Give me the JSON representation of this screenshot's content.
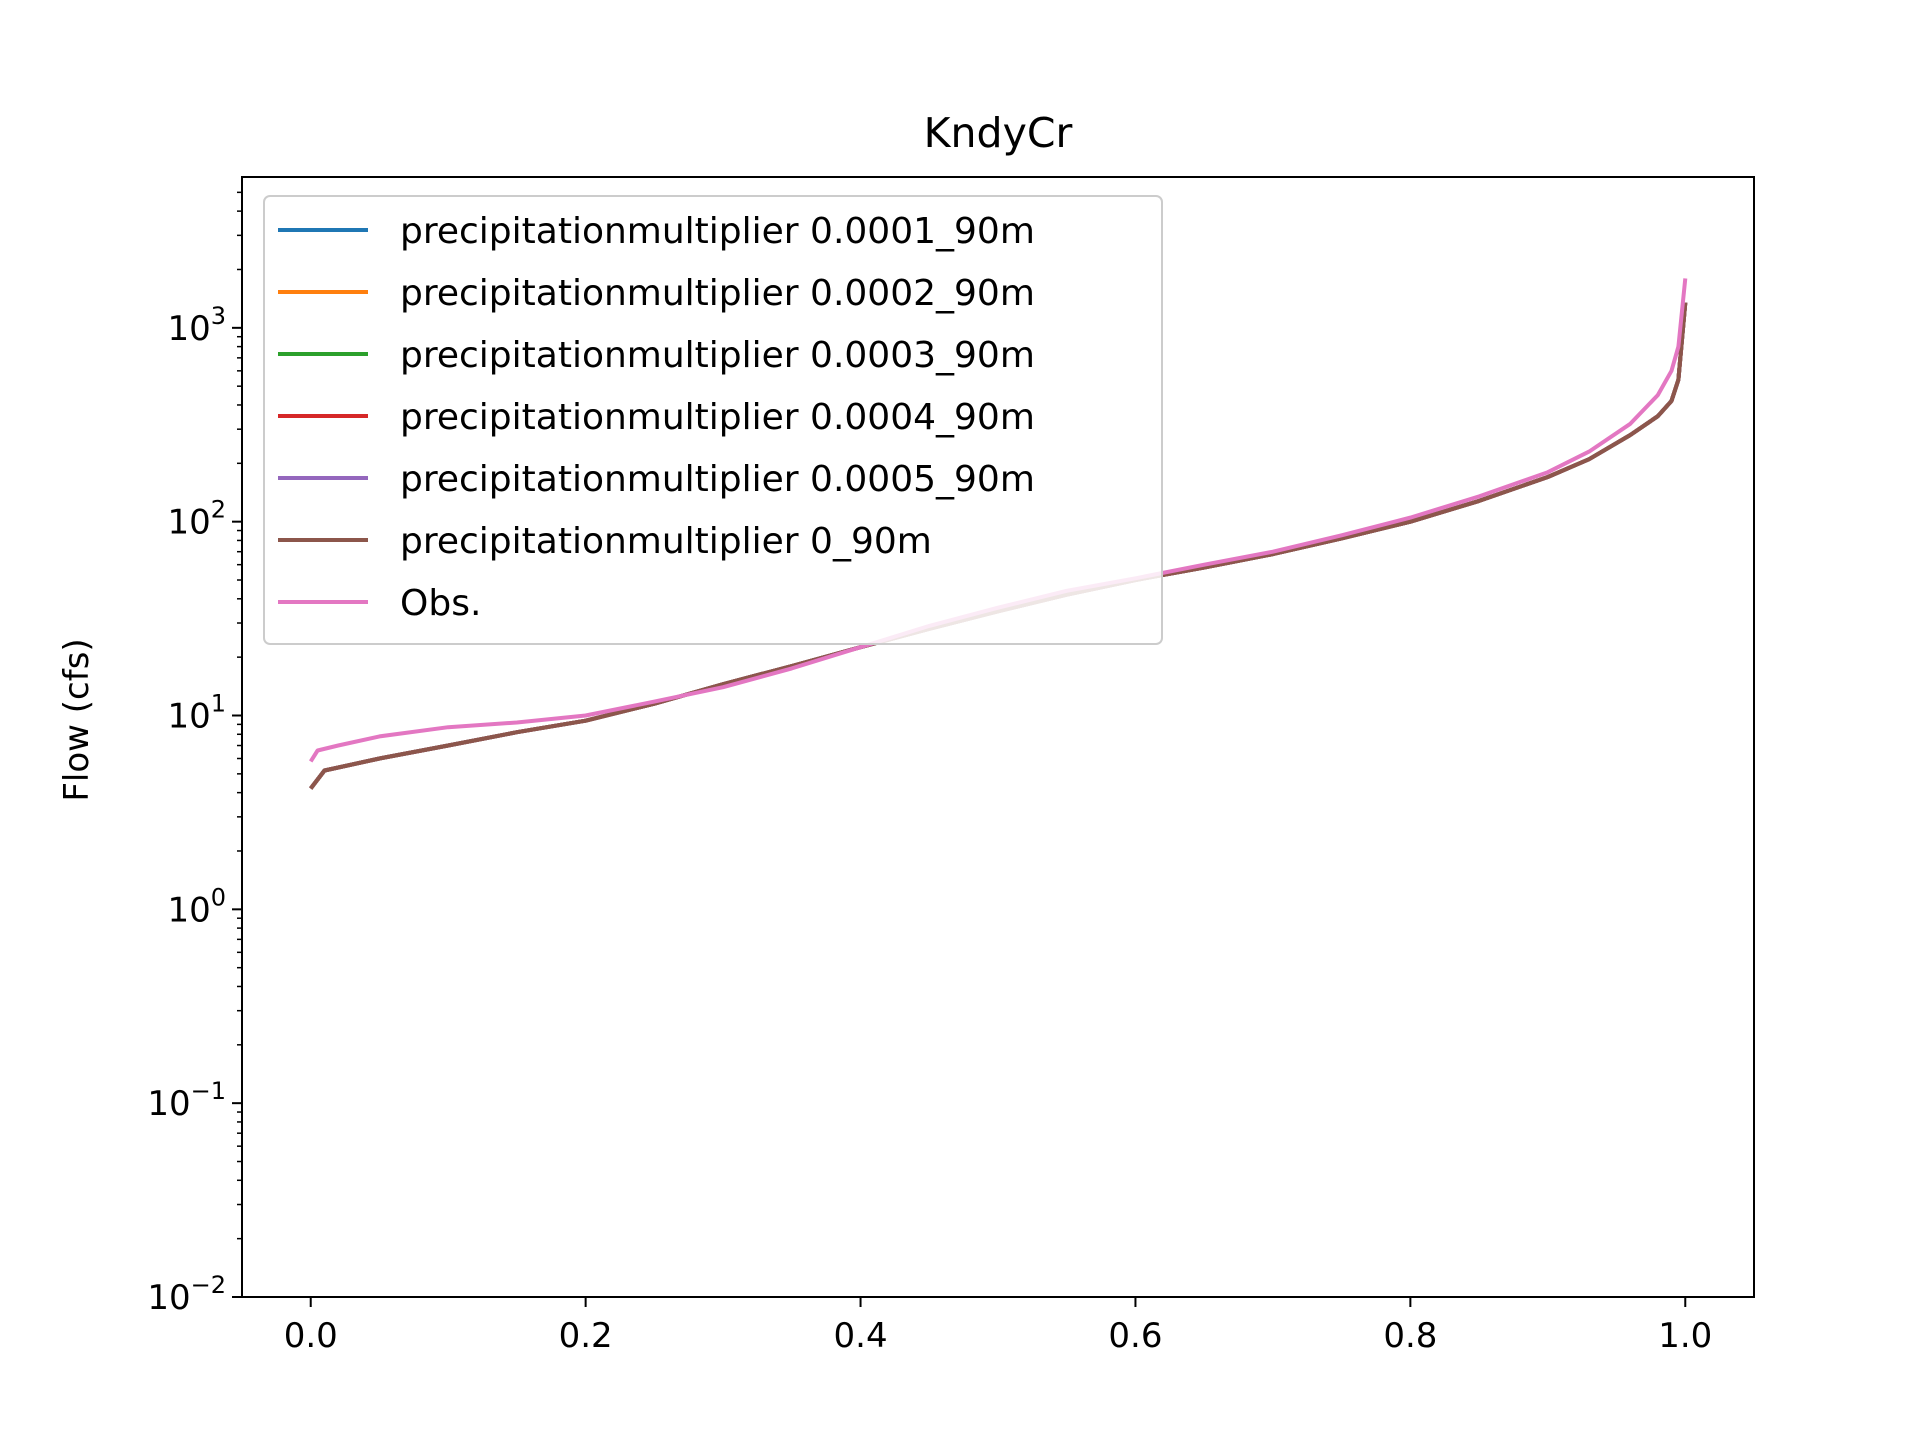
{
  "chart_data": {
    "type": "line",
    "title": "KndyCr",
    "xlabel": "",
    "ylabel": "Flow (cfs)",
    "xlim": [
      -0.05,
      1.05
    ],
    "ylim": [
      0.01,
      6000
    ],
    "yscale": "log",
    "xticks": [
      0.0,
      0.2,
      0.4,
      0.6,
      0.8,
      1.0
    ],
    "xtick_labels": [
      "0.0",
      "0.2",
      "0.4",
      "0.6",
      "0.8",
      "1.0"
    ],
    "yticks": [
      {
        "value": 0.01,
        "base": "10",
        "exp": "−2"
      },
      {
        "value": 0.1,
        "base": "10",
        "exp": "−1"
      },
      {
        "value": 1,
        "base": "10",
        "exp": "0"
      },
      {
        "value": 10,
        "base": "10",
        "exp": "1"
      },
      {
        "value": 100,
        "base": "10",
        "exp": "2"
      },
      {
        "value": 1000,
        "base": "10",
        "exp": "3"
      }
    ],
    "grid": false,
    "legend_position": "upper-left",
    "series": [
      {
        "name": "precipitationmultiplier 0.0001_90m",
        "color": "#1f77b4",
        "x": [
          0.0,
          0.01,
          0.05,
          0.1,
          0.15,
          0.2,
          0.25,
          0.3,
          0.35,
          0.4,
          0.45,
          0.5,
          0.55,
          0.6,
          0.65,
          0.7,
          0.75,
          0.8,
          0.85,
          0.9,
          0.93,
          0.96,
          0.98,
          0.99,
          0.995,
          1.0
        ],
        "y": [
          4.2,
          5.2,
          6.0,
          7.0,
          8.2,
          9.4,
          11.5,
          14.5,
          18.0,
          22.5,
          28.0,
          34.5,
          42.0,
          50.0,
          58.0,
          68.0,
          82.0,
          100.0,
          128.0,
          170.0,
          210.0,
          280.0,
          350.0,
          420.0,
          540.0,
          1350.0
        ]
      },
      {
        "name": "precipitationmultiplier 0.0002_90m",
        "color": "#ff7f0e",
        "x": [
          0.0,
          0.01,
          0.05,
          0.1,
          0.15,
          0.2,
          0.25,
          0.3,
          0.35,
          0.4,
          0.45,
          0.5,
          0.55,
          0.6,
          0.65,
          0.7,
          0.75,
          0.8,
          0.85,
          0.9,
          0.93,
          0.96,
          0.98,
          0.99,
          0.995,
          1.0
        ],
        "y": [
          4.2,
          5.2,
          6.0,
          7.0,
          8.2,
          9.4,
          11.5,
          14.5,
          18.0,
          22.5,
          28.0,
          34.5,
          42.0,
          50.0,
          58.0,
          68.0,
          82.0,
          100.0,
          128.0,
          170.0,
          210.0,
          280.0,
          350.0,
          420.0,
          540.0,
          1350.0
        ]
      },
      {
        "name": "precipitationmultiplier 0.0003_90m",
        "color": "#2ca02c",
        "x": [
          0.0,
          0.01,
          0.05,
          0.1,
          0.15,
          0.2,
          0.25,
          0.3,
          0.35,
          0.4,
          0.45,
          0.5,
          0.55,
          0.6,
          0.65,
          0.7,
          0.75,
          0.8,
          0.85,
          0.9,
          0.93,
          0.96,
          0.98,
          0.99,
          0.995,
          1.0
        ],
        "y": [
          4.2,
          5.2,
          6.0,
          7.0,
          8.2,
          9.4,
          11.5,
          14.5,
          18.0,
          22.5,
          28.0,
          34.5,
          42.0,
          50.0,
          58.0,
          68.0,
          82.0,
          100.0,
          128.0,
          170.0,
          210.0,
          280.0,
          350.0,
          420.0,
          540.0,
          1350.0
        ]
      },
      {
        "name": "precipitationmultiplier 0.0004_90m",
        "color": "#d62728",
        "x": [
          0.0,
          0.01,
          0.05,
          0.1,
          0.15,
          0.2,
          0.25,
          0.3,
          0.35,
          0.4,
          0.45,
          0.5,
          0.55,
          0.6,
          0.65,
          0.7,
          0.75,
          0.8,
          0.85,
          0.9,
          0.93,
          0.96,
          0.98,
          0.99,
          0.995,
          1.0
        ],
        "y": [
          4.2,
          5.2,
          6.0,
          7.0,
          8.2,
          9.4,
          11.5,
          14.5,
          18.0,
          22.5,
          28.0,
          34.5,
          42.0,
          50.0,
          58.0,
          68.0,
          82.0,
          100.0,
          128.0,
          170.0,
          210.0,
          280.0,
          350.0,
          420.0,
          540.0,
          1350.0
        ]
      },
      {
        "name": "precipitationmultiplier 0.0005_90m",
        "color": "#9467bd",
        "x": [
          0.0,
          0.01,
          0.05,
          0.1,
          0.15,
          0.2,
          0.25,
          0.3,
          0.35,
          0.4,
          0.45,
          0.5,
          0.55,
          0.6,
          0.65,
          0.7,
          0.75,
          0.8,
          0.85,
          0.9,
          0.93,
          0.96,
          0.98,
          0.99,
          0.995,
          1.0
        ],
        "y": [
          4.2,
          5.2,
          6.0,
          7.0,
          8.2,
          9.4,
          11.5,
          14.5,
          18.0,
          22.5,
          28.0,
          34.5,
          42.0,
          50.0,
          58.0,
          68.0,
          82.0,
          100.0,
          128.0,
          170.0,
          210.0,
          280.0,
          350.0,
          420.0,
          540.0,
          1350.0
        ]
      },
      {
        "name": "precipitationmultiplier 0_90m",
        "color": "#8c564b",
        "x": [
          0.0,
          0.01,
          0.05,
          0.1,
          0.15,
          0.2,
          0.25,
          0.3,
          0.35,
          0.4,
          0.45,
          0.5,
          0.55,
          0.6,
          0.65,
          0.7,
          0.75,
          0.8,
          0.85,
          0.9,
          0.93,
          0.96,
          0.98,
          0.99,
          0.995,
          1.0
        ],
        "y": [
          4.2,
          5.2,
          6.0,
          7.0,
          8.2,
          9.4,
          11.5,
          14.5,
          18.0,
          22.5,
          28.0,
          34.5,
          42.0,
          50.0,
          58.0,
          68.0,
          82.0,
          100.0,
          128.0,
          170.0,
          210.0,
          280.0,
          350.0,
          420.0,
          540.0,
          1350.0
        ]
      },
      {
        "name": "Obs.",
        "color": "#e377c2",
        "x": [
          0.0,
          0.005,
          0.02,
          0.05,
          0.1,
          0.15,
          0.2,
          0.25,
          0.3,
          0.35,
          0.4,
          0.45,
          0.5,
          0.55,
          0.6,
          0.65,
          0.7,
          0.75,
          0.8,
          0.85,
          0.9,
          0.93,
          0.96,
          0.98,
          0.99,
          0.995,
          1.0
        ],
        "y": [
          5.8,
          6.6,
          7.0,
          7.8,
          8.7,
          9.2,
          10.0,
          11.8,
          14.0,
          17.5,
          22.5,
          29.0,
          36.0,
          44.0,
          51.0,
          60.0,
          70.0,
          85.0,
          105.0,
          135.0,
          180.0,
          230.0,
          320.0,
          450.0,
          600.0,
          800.0,
          1800.0
        ]
      }
    ]
  }
}
